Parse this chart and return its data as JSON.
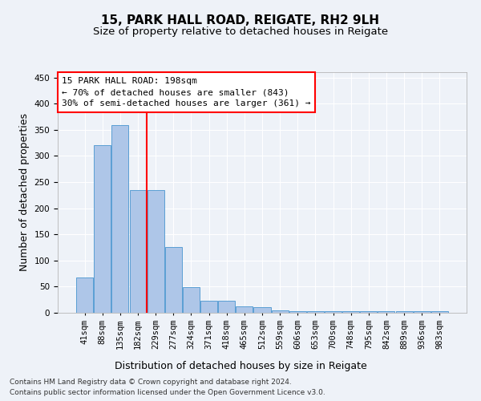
{
  "title": "15, PARK HALL ROAD, REIGATE, RH2 9LH",
  "subtitle": "Size of property relative to detached houses in Reigate",
  "xlabel": "Distribution of detached houses by size in Reigate",
  "ylabel": "Number of detached properties",
  "bar_values": [
    67,
    321,
    359,
    234,
    234,
    126,
    49,
    23,
    23,
    13,
    10,
    5,
    3,
    3,
    3,
    3,
    3,
    3,
    3,
    3,
    3
  ],
  "bar_labels": [
    "41sqm",
    "88sqm",
    "135sqm",
    "182sqm",
    "229sqm",
    "277sqm",
    "324sqm",
    "371sqm",
    "418sqm",
    "465sqm",
    "512sqm",
    "559sqm",
    "606sqm",
    "653sqm",
    "700sqm",
    "748sqm",
    "795sqm",
    "842sqm",
    "889sqm",
    "936sqm",
    "983sqm"
  ],
  "bar_color": "#aec6e8",
  "bar_edgecolor": "#5a9fd4",
  "ylim": [
    0,
    460
  ],
  "yticks": [
    0,
    50,
    100,
    150,
    200,
    250,
    300,
    350,
    400,
    450
  ],
  "vline_color": "red",
  "annotation_box_text": "15 PARK HALL ROAD: 198sqm\n← 70% of detached houses are smaller (843)\n30% of semi-detached houses are larger (361) →",
  "footer_line1": "Contains HM Land Registry data © Crown copyright and database right 2024.",
  "footer_line2": "Contains public sector information licensed under the Open Government Licence v3.0.",
  "background_color": "#eef2f8",
  "grid_color": "#ffffff",
  "title_fontsize": 11,
  "subtitle_fontsize": 9.5,
  "axis_label_fontsize": 9,
  "tick_fontsize": 7.5,
  "footer_fontsize": 6.5,
  "annot_fontsize": 8
}
